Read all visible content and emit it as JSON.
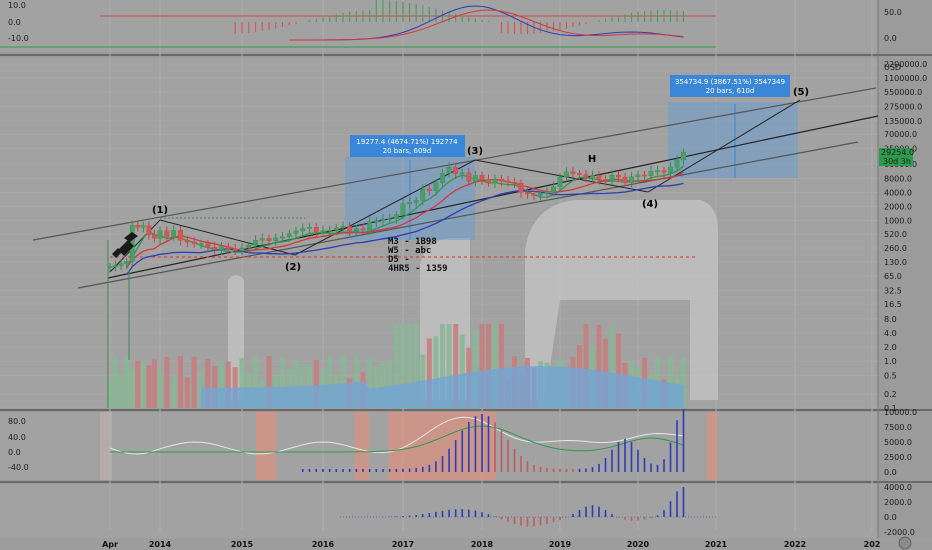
{
  "chart_data": {
    "type": "candlestick",
    "x_labels": [
      "Apr",
      "2014",
      "2015",
      "2016",
      "2017",
      "2018",
      "2019",
      "2020",
      "2021",
      "2022",
      "202"
    ],
    "price_axis": {
      "scale": "log",
      "unit": "USD",
      "ticks": [
        "2200000.0",
        "1100000.0",
        "550000.0",
        "275000.0",
        "135000.0",
        "70000.0",
        "35000.0",
        "16000.0",
        "8000.0",
        "4000.0",
        "2000.0",
        "1000.0",
        "520.0",
        "260.0",
        "130.0",
        "65.0",
        "32.5",
        "16.5",
        "8.0",
        "4.0",
        "2.0",
        "1.0",
        "0.5",
        "0.2",
        "0.1"
      ],
      "current_price": "29254.0",
      "countdown": "30d 3h"
    },
    "top_panel": {
      "left_ticks": [
        "10.0",
        "0.0",
        "-10.0"
      ],
      "right_ticks": [
        "50.0",
        "0.0"
      ]
    },
    "oscillator_panel": {
      "left_ticks": [
        "80.0",
        "40.0",
        "0.0",
        "-40.0"
      ],
      "right_ticks": [
        "10000.0",
        "7500.0",
        "5000.0",
        "2500.0",
        "0.0"
      ]
    },
    "bottom_panel": {
      "right_ticks": [
        "4000.0",
        "2000.0",
        "0.0",
        "-2000.0"
      ]
    },
    "wave_labels": [
      "(1)",
      "(2)",
      "(3)",
      "(4)",
      "(5)"
    ],
    "measure_boxes": [
      {
        "line1": "19277.4 (4674.71%) 192774",
        "line2": "20 bars, 609d"
      },
      {
        "line1": "354734.9 (3867.51%) 3547349",
        "line2": "20 bars, 610d"
      }
    ],
    "notes": [
      "M3 - 1B98",
      "W5 - abc",
      "D5 -",
      "4HR5 - 1359"
    ],
    "markers": [
      "H"
    ],
    "monthly_closes": [
      105,
      110,
      120,
      135,
      800,
      720,
      780,
      500,
      420,
      610,
      450,
      620,
      380,
      350,
      320,
      320,
      270,
      240,
      280,
      250,
      230,
      260,
      300,
      380,
      415,
      370,
      430,
      450,
      530,
      600,
      680,
      720,
      580,
      610,
      630,
      700,
      750,
      600,
      670,
      630,
      960,
      1000,
      1080,
      1100,
      1340,
      2300,
      2450,
      2700,
      4700,
      4330,
      6400,
      10200,
      13800,
      10000,
      10500,
      6900,
      9200,
      7500,
      6400,
      7700,
      7000,
      6600,
      6300,
      4000,
      3700,
      3450,
      3800,
      4100,
      5300,
      8600,
      11000,
      10100,
      9600,
      8300,
      9200,
      7600,
      7200,
      9300,
      8500,
      6400,
      8600,
      9450,
      9140,
      11300,
      11650,
      10800,
      13800,
      19700,
      29000
    ],
    "colors": {
      "up": "#3d8c57",
      "down": "#c24848",
      "volume_up": "#88b795",
      "volume_down": "#c57e7e",
      "measure_box": "#5d9bd5",
      "oscillator_bars": "#2b3db8"
    }
  }
}
